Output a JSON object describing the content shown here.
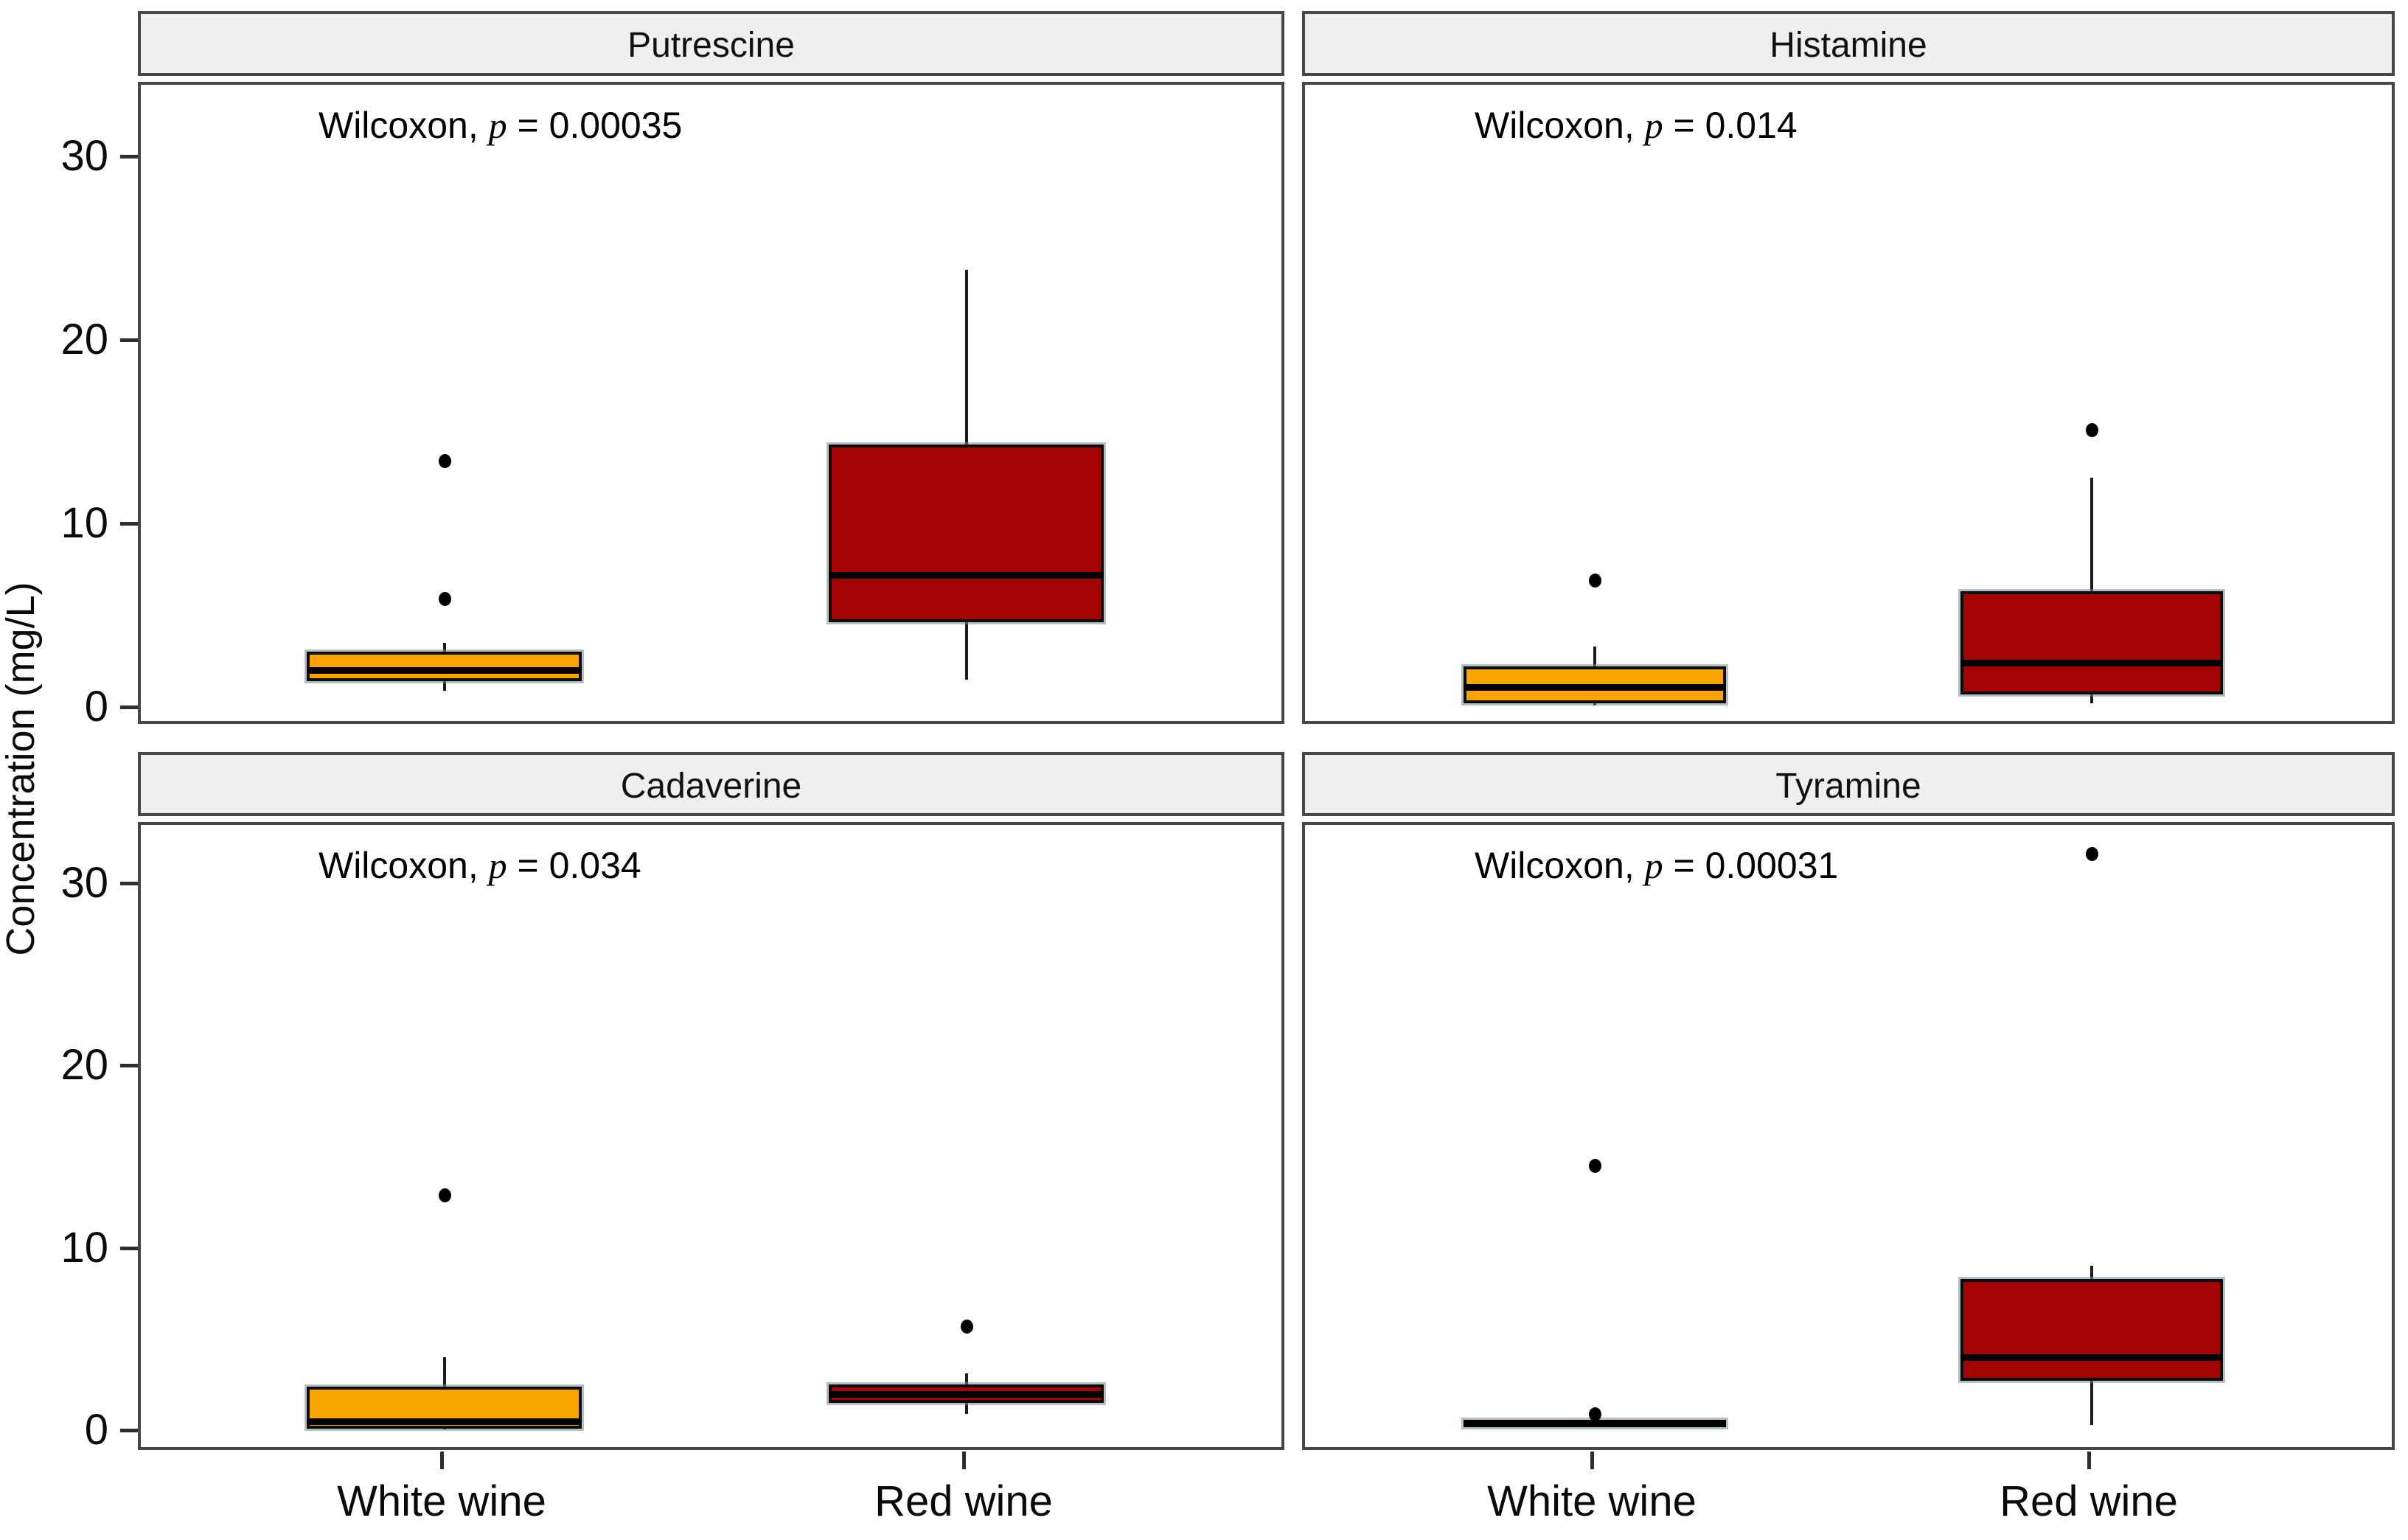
{
  "figure": {
    "y_axis_title": "Concentration (mg/L)"
  },
  "chart_data": {
    "type": "boxplot",
    "layout": "2x2-facets",
    "title": "",
    "ylabel": "Concentration (mg/L)",
    "xlabel": "",
    "categories": [
      "White wine",
      "Red wine"
    ],
    "y_ticks": [
      0,
      10,
      20,
      30
    ],
    "ylim": [
      -1,
      34
    ],
    "grid": false,
    "legend": "none",
    "colors": {
      "white_wine_fill": "#F7A300",
      "red_wine_fill": "#A40303",
      "box_border": "#0d0d0d",
      "median": "#000000",
      "whisker": "#1c1c1c",
      "outlier": "#000000",
      "panel_border": "#474747",
      "strip_background": "#efefef",
      "text": "#000000"
    },
    "facets": [
      {
        "title": "Putrescine",
        "annotation": {
          "test": "Wilcoxon, ",
          "stat_symbol": "p",
          "value_text": " = 0.00035"
        },
        "boxes": [
          {
            "category": "White wine",
            "fill_key": "white_wine_fill",
            "whisker_low": 0.9,
            "q1": 1.4,
            "median": 2.0,
            "q3": 3.0,
            "whisker_high": 3.5,
            "outliers": [
              5.9,
              13.4
            ]
          },
          {
            "category": "Red wine",
            "fill_key": "red_wine_fill",
            "whisker_low": 1.5,
            "q1": 4.6,
            "median": 7.2,
            "q3": 14.3,
            "whisker_high": 23.8,
            "outliers": []
          }
        ]
      },
      {
        "title": "Histamine",
        "annotation": {
          "test": "Wilcoxon, ",
          "stat_symbol": "p",
          "value_text": " = 0.014"
        },
        "boxes": [
          {
            "category": "White wine",
            "fill_key": "white_wine_fill",
            "whisker_low": 0.1,
            "q1": 0.2,
            "median": 1.1,
            "q3": 2.2,
            "whisker_high": 3.3,
            "outliers": [
              6.9
            ]
          },
          {
            "category": "Red wine",
            "fill_key": "red_wine_fill",
            "whisker_low": 0.2,
            "q1": 0.7,
            "median": 2.4,
            "q3": 6.3,
            "whisker_high": 12.5,
            "outliers": [
              15.1
            ]
          }
        ]
      },
      {
        "title": "Cadaverine",
        "annotation": {
          "test": "Wilcoxon, ",
          "stat_symbol": "p",
          "value_text": " = 0.034"
        },
        "boxes": [
          {
            "category": "White wine",
            "fill_key": "white_wine_fill",
            "whisker_low": 0.05,
            "q1": 0.1,
            "median": 0.5,
            "q3": 2.4,
            "whisker_high": 4.0,
            "outliers": [
              12.9
            ]
          },
          {
            "category": "Red wine",
            "fill_key": "red_wine_fill",
            "whisker_low": 0.9,
            "q1": 1.5,
            "median": 2.0,
            "q3": 2.5,
            "whisker_high": 3.1,
            "outliers": [
              5.7
            ]
          }
        ]
      },
      {
        "title": "Tyramine",
        "annotation": {
          "test": "Wilcoxon, ",
          "stat_symbol": "p",
          "value_text": " = 0.00031"
        },
        "boxes": [
          {
            "category": "White wine",
            "fill_key": "white_wine_fill",
            "whisker_low": 0.25,
            "q1": 0.3,
            "median": 0.4,
            "q3": 0.55,
            "whisker_high": 0.7,
            "outliers": [
              0.9,
              14.5
            ]
          },
          {
            "category": "Red wine",
            "fill_key": "red_wine_fill",
            "whisker_low": 0.3,
            "q1": 2.7,
            "median": 4.0,
            "q3": 8.3,
            "whisker_high": 9.0,
            "outliers": [
              31.6
            ]
          }
        ]
      }
    ]
  }
}
